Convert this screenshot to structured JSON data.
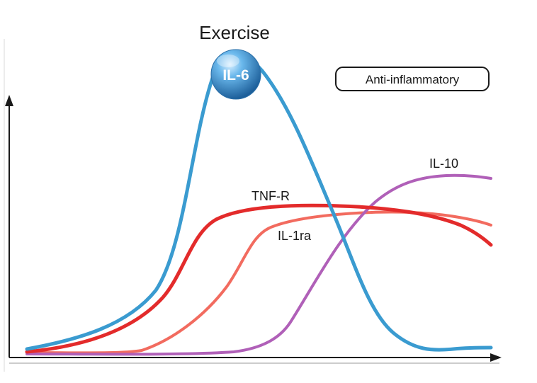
{
  "title": "Exercise",
  "badge": "Anti-inflammatory",
  "peak_marker": "IL-6",
  "curve_labels": {
    "tnf_r": "TNF-R",
    "il_1ra": "IL-1ra",
    "il_10": "IL-10"
  },
  "colors": {
    "il_6": "#3a9bd0",
    "tnf_r": "#e32b2b",
    "il_1ra": "#f26b5f",
    "il_10": "#b060b8",
    "axis": "#1a1a1a",
    "ball": "#2f86c6"
  },
  "axes": {
    "x_arrow": true,
    "y_arrow": true,
    "tick_labels": false
  }
}
